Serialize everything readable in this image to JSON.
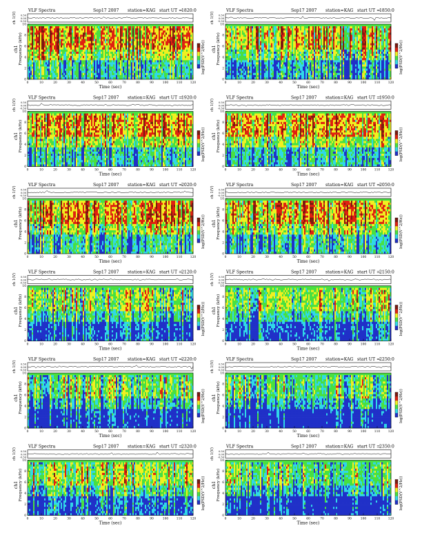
{
  "figure": {
    "title_prefix": "VLF Spectra",
    "date": "Sep17 2007",
    "station_label": "station=KAG",
    "start_label": "start  UT  =",
    "top_ylabel": "ch 1(V)",
    "ylabel_line1": "ch1",
    "ylabel_line2": "Frequency  (kHz)",
    "xlabel": "Time  (sec)",
    "colorbar_label": "log(PSD(V^2/Hz))",
    "colors": {
      "blue": "#2030c8",
      "cyan": "#30d8e8",
      "green": "#48e040",
      "yellow": "#f0f020",
      "red": "#e02010",
      "dark_red": "#7a1a10"
    }
  },
  "chart_data": [
    {
      "type": "heatmap",
      "title": "VLF Spectra",
      "date": "Sep17 2007",
      "station": "KAG",
      "start_ut": "1820:0",
      "xlabel": "Time (sec)",
      "ylabel": "Frequency (kHz)",
      "xlim": [
        0,
        120
      ],
      "ylim": [
        0,
        10
      ],
      "xticks": [
        0,
        10,
        20,
        30,
        40,
        50,
        60,
        70,
        80,
        90,
        100,
        110,
        120
      ],
      "yticks": [
        0,
        2,
        4,
        6,
        8,
        10
      ],
      "top_yticks": [
        "0.50",
        "0.00",
        "-0.50"
      ],
      "intensity": 0.62,
      "seed": 11
    },
    {
      "type": "heatmap",
      "title": "VLF Spectra",
      "date": "Sep17 2007",
      "station": "KAG",
      "start_ut": "1850:0",
      "xlabel": "Time (sec)",
      "ylabel": "Frequency (kHz)",
      "xlim": [
        0,
        120
      ],
      "ylim": [
        0,
        10
      ],
      "xticks": [
        0,
        10,
        20,
        30,
        40,
        50,
        60,
        70,
        80,
        90,
        100,
        110,
        120
      ],
      "yticks": [
        0,
        2,
        4,
        6,
        8,
        10
      ],
      "top_yticks": [
        "0.50",
        "0.00",
        "-0.50"
      ],
      "intensity": 0.52,
      "seed": 23
    },
    {
      "type": "heatmap",
      "title": "VLF Spectra",
      "date": "Sep17 2007",
      "station": "KAG",
      "start_ut": "1920:0",
      "xlabel": "Time (sec)",
      "ylabel": "Frequency (kHz)",
      "xlim": [
        0,
        120
      ],
      "ylim": [
        0,
        10
      ],
      "xticks": [
        0,
        10,
        20,
        30,
        40,
        50,
        60,
        70,
        80,
        90,
        100,
        110,
        120
      ],
      "yticks": [
        0,
        2,
        4,
        6,
        8,
        10
      ],
      "top_yticks": [
        "0.50",
        "0.00",
        "-0.50"
      ],
      "intensity": 0.6,
      "seed": 37
    },
    {
      "type": "heatmap",
      "title": "VLF Spectra",
      "date": "Sep17 2007",
      "station": "KAG",
      "start_ut": "1950:0",
      "xlabel": "Time (sec)",
      "ylabel": "Frequency (kHz)",
      "xlim": [
        0,
        120
      ],
      "ylim": [
        0,
        10
      ],
      "xticks": [
        0,
        10,
        20,
        30,
        40,
        50,
        60,
        70,
        80,
        90,
        100,
        110,
        120
      ],
      "yticks": [
        0,
        2,
        4,
        6,
        8,
        10
      ],
      "top_yticks": [
        "0.50",
        "0.00",
        "-0.50"
      ],
      "intensity": 0.6,
      "seed": 41
    },
    {
      "type": "heatmap",
      "title": "VLF Spectra",
      "date": "Sep17 2007",
      "station": "KAG",
      "start_ut": "2020:0",
      "xlabel": "Time (sec)",
      "ylabel": "Frequency (kHz)",
      "xlim": [
        0,
        120
      ],
      "ylim": [
        0,
        10
      ],
      "xticks": [
        0,
        10,
        20,
        30,
        40,
        50,
        60,
        70,
        80,
        90,
        100,
        110,
        120
      ],
      "yticks": [
        0,
        2,
        4,
        6,
        8,
        10
      ],
      "top_yticks": [
        "0.50",
        "0.00",
        "-0.50"
      ],
      "intensity": 0.6,
      "seed": 53
    },
    {
      "type": "heatmap",
      "title": "VLF Spectra",
      "date": "Sep17 2007",
      "station": "KAG",
      "start_ut": "2050:0",
      "xlabel": "Time (sec)",
      "ylabel": "Frequency (kHz)",
      "xlim": [
        0,
        120
      ],
      "ylim": [
        0,
        10
      ],
      "xticks": [
        0,
        10,
        20,
        30,
        40,
        50,
        60,
        70,
        80,
        90,
        100,
        110,
        120
      ],
      "yticks": [
        0,
        2,
        4,
        6,
        8,
        10
      ],
      "top_yticks": [
        "0.50",
        "0.00",
        "-0.50"
      ],
      "intensity": 0.58,
      "seed": 67
    },
    {
      "type": "heatmap",
      "title": "VLF Spectra",
      "date": "Sep17 2007",
      "station": "KAG",
      "start_ut": "2120:0",
      "xlabel": "Time (sec)",
      "ylabel": "Frequency (kHz)",
      "xlim": [
        0,
        120
      ],
      "ylim": [
        0,
        10
      ],
      "xticks": [
        0,
        10,
        20,
        30,
        40,
        50,
        60,
        70,
        80,
        90,
        100,
        110,
        120
      ],
      "yticks": [
        0,
        2,
        4,
        6,
        8,
        10
      ],
      "top_yticks": [
        "0.50",
        "0.00",
        "-0.50"
      ],
      "intensity": 0.4,
      "seed": 71
    },
    {
      "type": "heatmap",
      "title": "VLF Spectra",
      "date": "Sep17 2007",
      "station": "KAG",
      "start_ut": "2150:0",
      "xlabel": "Time (sec)",
      "ylabel": "Frequency (kHz)",
      "xlim": [
        0,
        120
      ],
      "ylim": [
        0,
        10
      ],
      "xticks": [
        0,
        10,
        20,
        30,
        40,
        50,
        60,
        70,
        80,
        90,
        100,
        110,
        120
      ],
      "yticks": [
        0,
        2,
        4,
        6,
        8,
        10
      ],
      "top_yticks": [
        "0.50",
        "0.00",
        "-0.50"
      ],
      "intensity": 0.42,
      "seed": 83
    },
    {
      "type": "heatmap",
      "title": "VLF Spectra",
      "date": "Sep17 2007",
      "station": "KAG",
      "start_ut": "2220:0",
      "xlabel": "Time (sec)",
      "ylabel": "Frequency (kHz)",
      "xlim": [
        0,
        120
      ],
      "ylim": [
        0,
        10
      ],
      "xticks": [
        0,
        10,
        20,
        30,
        40,
        50,
        60,
        70,
        80,
        90,
        100,
        110,
        120
      ],
      "yticks": [
        0,
        2,
        4,
        6,
        8,
        10
      ],
      "top_yticks": [
        "0.50",
        "0.00",
        "-0.50"
      ],
      "intensity": 0.34,
      "seed": 97
    },
    {
      "type": "heatmap",
      "title": "VLF Spectra",
      "date": "Sep17 2007",
      "station": "KAG",
      "start_ut": "2250:0",
      "xlabel": "Time (sec)",
      "ylabel": "Frequency (kHz)",
      "xlim": [
        0,
        120
      ],
      "ylim": [
        0,
        10
      ],
      "xticks": [
        0,
        10,
        20,
        30,
        40,
        50,
        60,
        70,
        80,
        90,
        100,
        110,
        120
      ],
      "yticks": [
        0,
        2,
        4,
        6,
        8,
        10
      ],
      "top_yticks": [
        "0.50",
        "0.00",
        "-0.50"
      ],
      "intensity": 0.32,
      "seed": 101
    },
    {
      "type": "heatmap",
      "title": "VLF Spectra",
      "date": "Sep17 2007",
      "station": "KAG",
      "start_ut": "2320:0",
      "xlabel": "Time (sec)",
      "ylabel": "Frequency (kHz)",
      "xlim": [
        0,
        120
      ],
      "ylim": [
        0,
        10
      ],
      "xticks": [
        0,
        10,
        20,
        30,
        40,
        50,
        60,
        70,
        80,
        90,
        100,
        110,
        120
      ],
      "yticks": [
        0,
        2,
        4,
        6,
        8,
        10
      ],
      "top_yticks": [
        "0.50",
        "0.00",
        "-0.50"
      ],
      "intensity": 0.46,
      "seed": 113
    },
    {
      "type": "heatmap",
      "title": "VLF Spectra",
      "date": "Sep17 2007",
      "station": "KAG",
      "start_ut": "2350:0",
      "xlabel": "Time (sec)",
      "ylabel": "Frequency (kHz)",
      "xlim": [
        0,
        120
      ],
      "ylim": [
        0,
        10
      ],
      "xticks": [
        0,
        10,
        20,
        30,
        40,
        50,
        60,
        70,
        80,
        90,
        100,
        110,
        120
      ],
      "yticks": [
        0,
        2,
        4,
        6,
        8,
        10
      ],
      "top_yticks": [
        "0.50",
        "0.00",
        "-0.50"
      ],
      "intensity": 0.3,
      "seed": 127
    }
  ]
}
